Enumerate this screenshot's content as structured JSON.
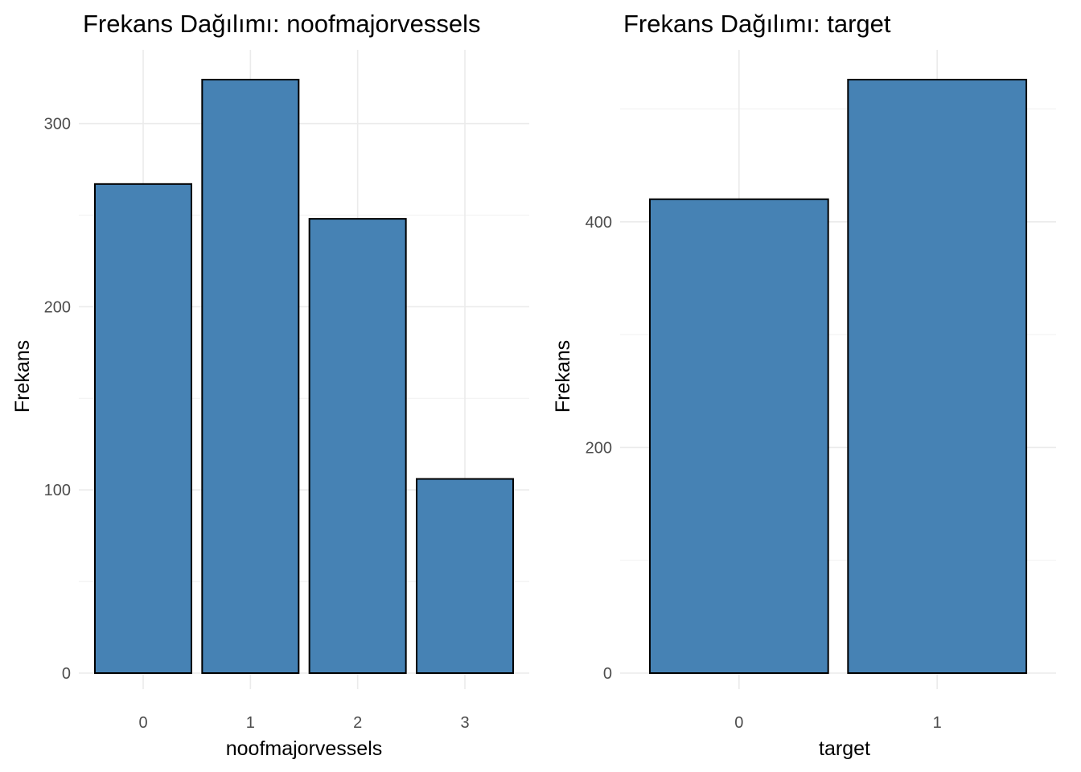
{
  "chart_data": [
    {
      "type": "bar",
      "title": "Frekans Dağılımı: noofmajorvessels",
      "xlabel": "noofmajorvessels",
      "ylabel": "Frekans",
      "categories": [
        "0",
        "1",
        "2",
        "3"
      ],
      "values": [
        267,
        324,
        248,
        106
      ],
      "ylim": [
        0,
        324
      ],
      "yticks": [
        0,
        100,
        200,
        300
      ],
      "yticks_labels": [
        "0",
        "100",
        "200",
        "300"
      ],
      "ygrid_minor": [
        50,
        150,
        250
      ],
      "bar_color": "#4682b4",
      "bar_outline": "#000000",
      "grid": true,
      "legend": "none"
    },
    {
      "type": "bar",
      "title": "Frekans Dağılımı: target",
      "xlabel": "target",
      "ylabel": "Frekans",
      "categories": [
        "0",
        "1"
      ],
      "values": [
        420,
        526
      ],
      "ylim": [
        0,
        526
      ],
      "yticks": [
        0,
        200,
        400
      ],
      "yticks_labels": [
        "0",
        "200",
        "400"
      ],
      "ygrid_minor": [
        100,
        300,
        500
      ],
      "bar_color": "#4682b4",
      "bar_outline": "#000000",
      "grid": true,
      "legend": "none"
    }
  ]
}
